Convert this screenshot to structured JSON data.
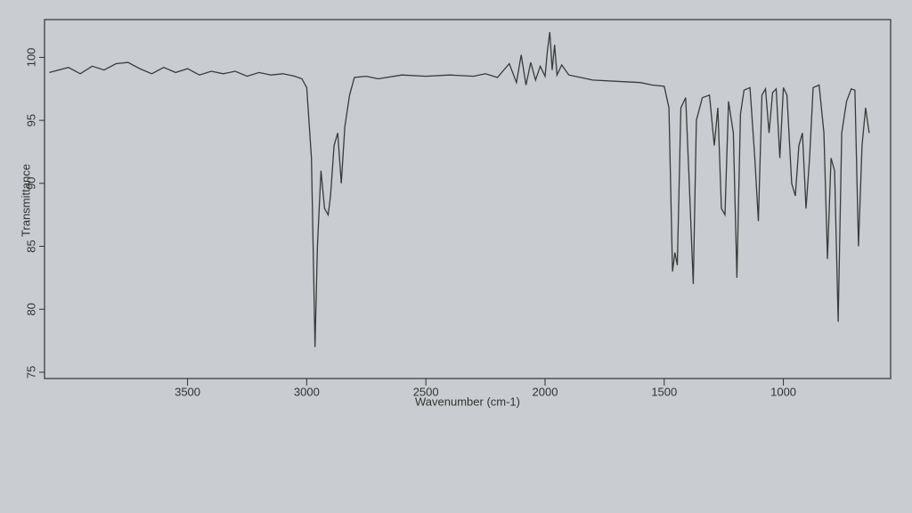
{
  "chart_data": {
    "type": "line",
    "x_label": "Wavenumber (cm-1)",
    "y_label": "Transmittance",
    "xlim": [
      4100,
      550
    ],
    "ylim": [
      74.5,
      103
    ],
    "xticks": [
      3500,
      3000,
      2500,
      2000,
      1500,
      1000
    ],
    "yticks": [
      75,
      80,
      85,
      90,
      95,
      100
    ],
    "series": [
      {
        "color": "#3a3a3a",
        "x": [
          4080,
          4000,
          3950,
          3900,
          3850,
          3800,
          3750,
          3700,
          3650,
          3600,
          3550,
          3500,
          3450,
          3400,
          3350,
          3300,
          3250,
          3200,
          3150,
          3100,
          3050,
          3020,
          3000,
          2980,
          2965,
          2955,
          2940,
          2925,
          2910,
          2900,
          2885,
          2870,
          2855,
          2840,
          2820,
          2800,
          2750,
          2700,
          2600,
          2500,
          2400,
          2300,
          2250,
          2200,
          2150,
          2120,
          2100,
          2080,
          2060,
          2040,
          2020,
          2000,
          1990,
          1980,
          1970,
          1960,
          1950,
          1930,
          1900,
          1850,
          1800,
          1700,
          1600,
          1550,
          1500,
          1480,
          1465,
          1455,
          1445,
          1430,
          1410,
          1395,
          1378,
          1365,
          1340,
          1310,
          1290,
          1275,
          1260,
          1245,
          1230,
          1210,
          1195,
          1180,
          1165,
          1140,
          1120,
          1105,
          1090,
          1075,
          1060,
          1045,
          1030,
          1015,
          1000,
          985,
          965,
          950,
          935,
          920,
          905,
          890,
          875,
          850,
          830,
          815,
          800,
          785,
          770,
          755,
          735,
          715,
          700,
          685,
          670,
          655,
          640
        ],
        "values": [
          98.8,
          99.2,
          98.7,
          99.3,
          99.0,
          99.5,
          99.6,
          99.1,
          98.7,
          99.2,
          98.8,
          99.1,
          98.6,
          98.9,
          98.7,
          98.9,
          98.5,
          98.8,
          98.6,
          98.7,
          98.5,
          98.3,
          97.6,
          92,
          77,
          85,
          91,
          88,
          87.5,
          89,
          93,
          94,
          90,
          94.5,
          97,
          98.4,
          98.5,
          98.3,
          98.6,
          98.5,
          98.6,
          98.5,
          98.7,
          98.4,
          99.5,
          98,
          100.2,
          97.8,
          99.6,
          98.2,
          99.3,
          98.5,
          100.5,
          102,
          99,
          101,
          98.6,
          99.4,
          98.6,
          98.4,
          98.2,
          98.1,
          98.0,
          97.8,
          97.7,
          96,
          83,
          84.5,
          83.5,
          96,
          96.8,
          90,
          82,
          95,
          96.8,
          97,
          93,
          96,
          88,
          87.5,
          96.5,
          94,
          82.5,
          95.5,
          97.4,
          97.6,
          92,
          87,
          97,
          97.5,
          94,
          97.2,
          97.5,
          92,
          97.6,
          97,
          90,
          89,
          93,
          94,
          88,
          92,
          97.6,
          97.8,
          94,
          84,
          92,
          91,
          79,
          94,
          96.5,
          97.5,
          97.4,
          85,
          93,
          96,
          94
        ]
      }
    ]
  }
}
